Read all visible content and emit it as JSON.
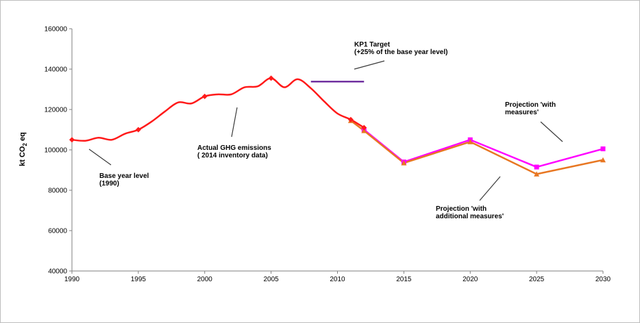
{
  "chart_data": {
    "type": "line",
    "ylabel": "kt CO",
    "ylabel_sub": "2",
    "ylabel_suffix": " eq",
    "xlim": [
      1990,
      2030
    ],
    "ylim": [
      40000,
      160000
    ],
    "x_ticks": [
      1990,
      1995,
      2000,
      2005,
      2010,
      2015,
      2020,
      2025,
      2030
    ],
    "y_ticks": [
      40000,
      60000,
      80000,
      100000,
      120000,
      140000,
      160000
    ],
    "grid": false,
    "colors": {
      "actual": "#ff1a1a",
      "target": "#7030a0",
      "with_measures": "#ff00ff",
      "with_additional": "#e87722"
    },
    "series": [
      {
        "key": "actual",
        "x": [
          1990,
          1991,
          1992,
          1993,
          1994,
          1995,
          1996,
          1997,
          1998,
          1999,
          2000,
          2001,
          2002,
          2003,
          2004,
          2005,
          2006,
          2007,
          2008,
          2009,
          2010,
          2011,
          2012
        ],
        "y": [
          105000,
          104500,
          106000,
          105000,
          108000,
          110000,
          114000,
          119000,
          123500,
          123000,
          126500,
          127500,
          127500,
          131000,
          131500,
          135500,
          131000,
          135000,
          130500,
          124000,
          118000,
          115000,
          111000
        ],
        "markers_x": [
          1990,
          1995,
          2000,
          2005,
          2011,
          2012
        ],
        "marker": "diamond"
      },
      {
        "key": "target",
        "x": [
          2008,
          2012
        ],
        "y": [
          133800,
          133800
        ]
      },
      {
        "key": "with_measures",
        "x": [
          2012,
          2015,
          2020,
          2025,
          2030
        ],
        "y": [
          110000,
          94000,
          105000,
          91500,
          100500
        ],
        "marker": "square"
      },
      {
        "key": "with_additional",
        "x": [
          2011,
          2012,
          2015,
          2020,
          2025,
          2030
        ],
        "y": [
          114500,
          109500,
          93500,
          104000,
          88000,
          95000
        ],
        "marker": "triangle"
      }
    ],
    "annotations": [
      {
        "key": "target",
        "lines": [
          "KP1 Target",
          "(+25% of the base year level)"
        ]
      },
      {
        "key": "actual",
        "lines": [
          "Actual  GHG emissions",
          "( 2014  inventory data)"
        ]
      },
      {
        "key": "base",
        "lines": [
          "Base year level",
          "(1990)"
        ]
      },
      {
        "key": "wm",
        "lines": [
          "Projection 'with",
          "measures'"
        ]
      },
      {
        "key": "wam",
        "lines": [
          "Projection 'with",
          "additional  measures'"
        ]
      }
    ]
  }
}
